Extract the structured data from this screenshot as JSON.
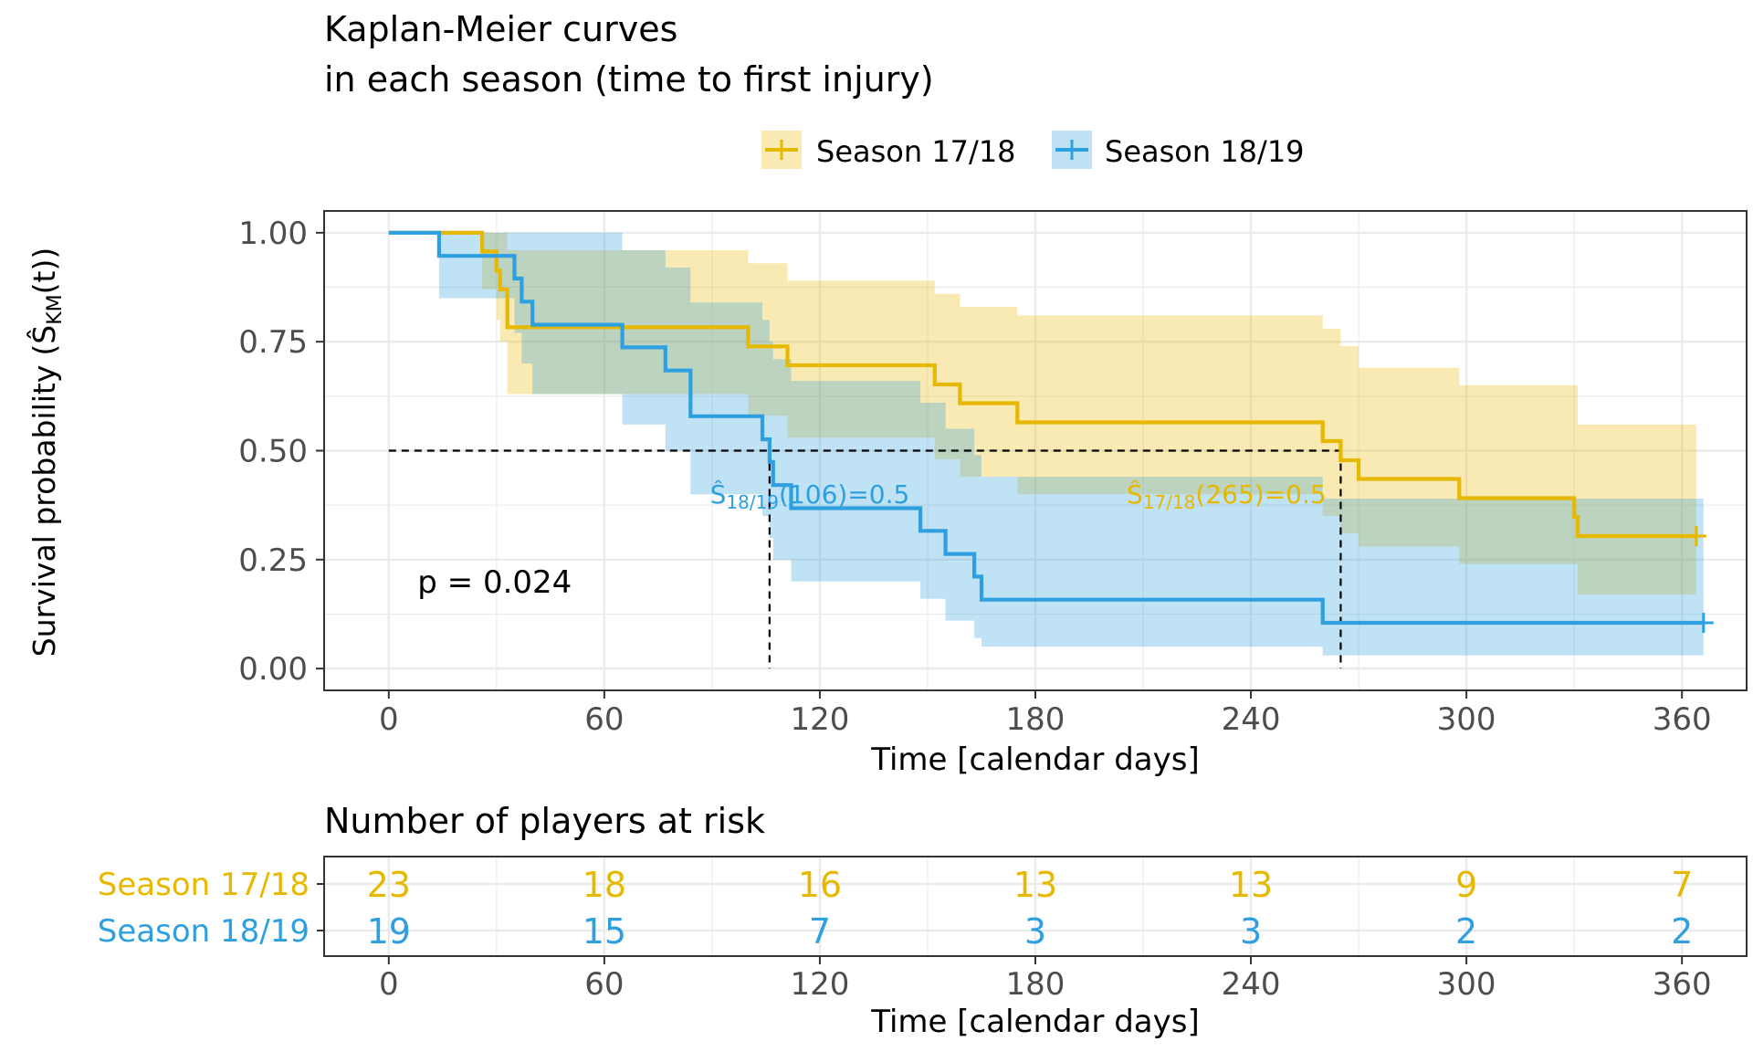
{
  "colors": {
    "season_1718": "#E7B800",
    "season_1819": "#2E9FDF",
    "ci_1718": "#E7B800",
    "ci_1819": "#2E9FDF",
    "grid": "#EBEBEB",
    "axis_text": "#4D4D4D",
    "text": "#000000"
  },
  "chart_data": [
    {
      "type": "line",
      "subtype": "kaplan-meier",
      "title": "Kaplan-Meier curves",
      "subtitle": "in each season (time to first injury)",
      "xlabel": "Time [calendar days]",
      "ylabel": "Survival probability",
      "ylabel_math": "(Ŝ",
      "ylabel_math_sub": "KM",
      "ylabel_math_end": "(t))",
      "xlim": [
        -18,
        378
      ],
      "ylim": [
        -0.05,
        1.05
      ],
      "x_ticks": [
        0,
        60,
        120,
        180,
        240,
        300,
        360
      ],
      "y_ticks": [
        0,
        0.25,
        0.5,
        0.75,
        1.0
      ],
      "y_tick_labels": [
        "0.00",
        "0.25",
        "0.50",
        "0.75",
        "1.00"
      ],
      "grid": true,
      "legend_position": "top",
      "legend": [
        "Season 17/18",
        "Season 18/19"
      ],
      "series": [
        {
          "name": "Season 17/18",
          "color_key": "season_1718",
          "steps": [
            [
              0,
              1.0
            ],
            [
              26,
              0.957
            ],
            [
              30,
              0.913
            ],
            [
              31,
              0.87
            ],
            [
              33,
              0.783
            ],
            [
              100,
              0.739
            ],
            [
              111,
              0.696
            ],
            [
              152,
              0.652
            ],
            [
              159,
              0.609
            ],
            [
              175,
              0.565
            ],
            [
              260,
              0.522
            ],
            [
              265,
              0.478
            ],
            [
              270,
              0.435
            ],
            [
              298,
              0.391
            ],
            [
              330,
              0.348
            ],
            [
              331,
              0.304
            ]
          ],
          "end": 364,
          "ci_upper": [
            [
              0,
              1.0
            ],
            [
              26,
              1.0
            ],
            [
              30,
              1.0
            ],
            [
              31,
              1.0
            ],
            [
              33,
              0.96
            ],
            [
              100,
              0.93
            ],
            [
              111,
              0.89
            ],
            [
              152,
              0.86
            ],
            [
              159,
              0.83
            ],
            [
              175,
              0.81
            ],
            [
              260,
              0.78
            ],
            [
              265,
              0.74
            ],
            [
              270,
              0.69
            ],
            [
              298,
              0.65
            ],
            [
              331,
              0.56
            ]
          ],
          "ci_lower": [
            [
              0,
              1.0
            ],
            [
              26,
              0.87
            ],
            [
              30,
              0.8
            ],
            [
              31,
              0.75
            ],
            [
              33,
              0.63
            ],
            [
              100,
              0.58
            ],
            [
              111,
              0.53
            ],
            [
              152,
              0.48
            ],
            [
              159,
              0.44
            ],
            [
              175,
              0.4
            ],
            [
              260,
              0.35
            ],
            [
              265,
              0.31
            ],
            [
              270,
              0.28
            ],
            [
              298,
              0.24
            ],
            [
              331,
              0.17
            ]
          ]
        },
        {
          "name": "Season 18/19",
          "color_key": "season_1819",
          "steps": [
            [
              0,
              1.0
            ],
            [
              14,
              0.947
            ],
            [
              35,
              0.895
            ],
            [
              37,
              0.842
            ],
            [
              40,
              0.789
            ],
            [
              65,
              0.737
            ],
            [
              77,
              0.684
            ],
            [
              84,
              0.579
            ],
            [
              104,
              0.526
            ],
            [
              106,
              0.474
            ],
            [
              107,
              0.421
            ],
            [
              112,
              0.368
            ],
            [
              148,
              0.316
            ],
            [
              155,
              0.263
            ],
            [
              163,
              0.211
            ],
            [
              165,
              0.158
            ],
            [
              260,
              0.105
            ]
          ],
          "end": 366,
          "ci_upper": [
            [
              0,
              1.0
            ],
            [
              14,
              1.0
            ],
            [
              35,
              1.0
            ],
            [
              37,
              1.0
            ],
            [
              40,
              1.0
            ],
            [
              65,
              0.96
            ],
            [
              77,
              0.92
            ],
            [
              84,
              0.84
            ],
            [
              104,
              0.8
            ],
            [
              106,
              0.75
            ],
            [
              107,
              0.71
            ],
            [
              112,
              0.66
            ],
            [
              148,
              0.61
            ],
            [
              155,
              0.55
            ],
            [
              163,
              0.49
            ],
            [
              165,
              0.44
            ],
            [
              260,
              0.39
            ]
          ],
          "ci_lower": [
            [
              0,
              1.0
            ],
            [
              14,
              0.85
            ],
            [
              35,
              0.77
            ],
            [
              37,
              0.7
            ],
            [
              40,
              0.63
            ],
            [
              65,
              0.56
            ],
            [
              77,
              0.5
            ],
            [
              84,
              0.4
            ],
            [
              104,
              0.35
            ],
            [
              106,
              0.3
            ],
            [
              107,
              0.25
            ],
            [
              112,
              0.2
            ],
            [
              148,
              0.16
            ],
            [
              155,
              0.11
            ],
            [
              163,
              0.07
            ],
            [
              165,
              0.05
            ],
            [
              260,
              0.03
            ]
          ]
        }
      ],
      "median_lines": [
        {
          "x": 106,
          "y": 0.5,
          "series": "Season 18/19"
        },
        {
          "x": 265,
          "y": 0.5,
          "series": "Season 17/18"
        }
      ],
      "annotations": [
        {
          "text_hat": "Ŝ",
          "text_sub": "18/19",
          "text_rest": "(106)=0.5",
          "x": 145,
          "y": 0.4,
          "color_key": "season_1819",
          "anchor": "end"
        },
        {
          "text_hat": "Ŝ",
          "text_sub": "17/18",
          "text_rest": "(265)=0.5",
          "x": 261,
          "y": 0.4,
          "color_key": "season_1718",
          "anchor": "end"
        },
        {
          "text": "p = 0.024",
          "x": 8,
          "y": 0.195,
          "color_key": "text",
          "anchor": "start"
        }
      ]
    },
    {
      "type": "table",
      "title": "Number of players at risk",
      "xlabel": "Time [calendar days]",
      "x_ticks": [
        0,
        60,
        120,
        180,
        240,
        300,
        360
      ],
      "rows": [
        {
          "name": "Season 17/18",
          "color_key": "season_1718",
          "values": [
            23,
            18,
            16,
            13,
            13,
            9,
            7
          ]
        },
        {
          "name": "Season 18/19",
          "color_key": "season_1819",
          "values": [
            19,
            15,
            7,
            3,
            3,
            2,
            2
          ]
        }
      ]
    }
  ]
}
